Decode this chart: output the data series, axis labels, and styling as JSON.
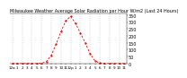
{
  "title": "Milwaukee Weather Average Solar Radiation per Hour W/m2 (Last 24 Hours)",
  "hours": [
    0,
    1,
    2,
    3,
    4,
    5,
    6,
    7,
    8,
    9,
    10,
    11,
    12,
    13,
    14,
    15,
    16,
    17,
    18,
    19,
    20,
    21,
    22,
    23
  ],
  "values": [
    0,
    0,
    0,
    0,
    0,
    0,
    2,
    15,
    60,
    140,
    230,
    310,
    340,
    290,
    220,
    150,
    70,
    20,
    3,
    0,
    0,
    0,
    0,
    0
  ],
  "line_color": "#ff0000",
  "bg_color": "#ffffff",
  "grid_color": "#999999",
  "ylim": [
    0,
    360
  ],
  "xlim": [
    -0.5,
    23.5
  ],
  "yticks": [
    0,
    50,
    100,
    150,
    200,
    250,
    300,
    350
  ],
  "ytick_labels": [
    "0",
    "50",
    "100",
    "150",
    "200",
    "250",
    "300",
    "350"
  ],
  "xtick_positions": [
    0,
    1,
    2,
    3,
    4,
    5,
    6,
    7,
    8,
    9,
    10,
    11,
    12,
    13,
    14,
    15,
    16,
    17,
    18,
    19,
    20,
    21,
    22,
    23
  ],
  "xtick_labels": [
    "12a",
    "1",
    "2",
    "3",
    "4",
    "5",
    "6",
    "7",
    "8",
    "9",
    "10",
    "11",
    "12p",
    "1",
    "2",
    "3",
    "4",
    "5",
    "6",
    "7",
    "8",
    "9",
    "10",
    "11"
  ],
  "grid_positions": [
    0,
    2,
    4,
    6,
    8,
    10,
    12,
    14,
    16,
    18,
    20,
    22
  ],
  "ylabel_fontsize": 3.5,
  "xlabel_fontsize": 3.0,
  "title_fontsize": 3.5
}
